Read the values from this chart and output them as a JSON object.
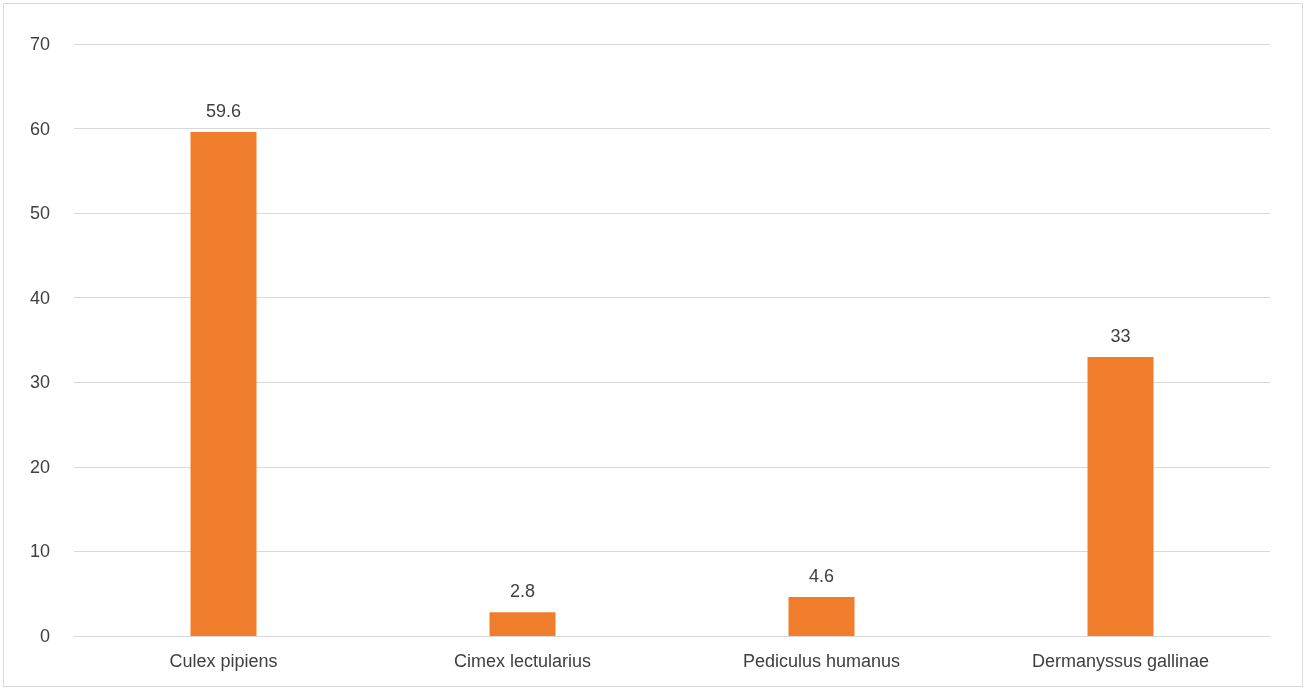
{
  "chart_data": {
    "type": "bar",
    "categories": [
      "Culex pipiens",
      "Cimex lectularius",
      "Pediculus humanus",
      "Dermanyssus gallinae"
    ],
    "values": [
      59.6,
      2.8,
      4.6,
      33
    ],
    "color": "#f07d2c",
    "ylim": [
      0,
      70
    ],
    "yticks": [
      0,
      10,
      20,
      30,
      40,
      50,
      60,
      70
    ],
    "grid": "y",
    "data_labels": true
  }
}
